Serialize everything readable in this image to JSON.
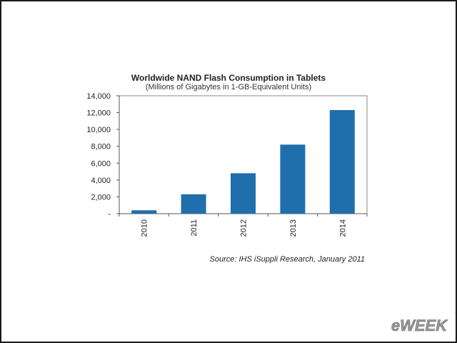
{
  "chart_data": {
    "type": "bar",
    "title": "Worldwide NAND Flash Consumption in Tablets",
    "subtitle": "(Millions of Gigabytes in 1-GB-Equivalent Units)",
    "categories": [
      "2010",
      "2011",
      "2012",
      "2013",
      "2014"
    ],
    "values": [
      400,
      2300,
      4800,
      8200,
      12300
    ],
    "ylim": [
      0,
      14000
    ],
    "yticks": [
      0,
      2000,
      4000,
      6000,
      8000,
      10000,
      12000,
      14000
    ],
    "ytick_labels": [
      "-",
      "2,000",
      "4,000",
      "6,000",
      "8,000",
      "10,000",
      "12,000",
      "14,000"
    ],
    "grid": false,
    "bar_color": "#1f6fad"
  },
  "source": "Source: IHS iSuppli Research, January 2011",
  "watermark": "eWEEK"
}
